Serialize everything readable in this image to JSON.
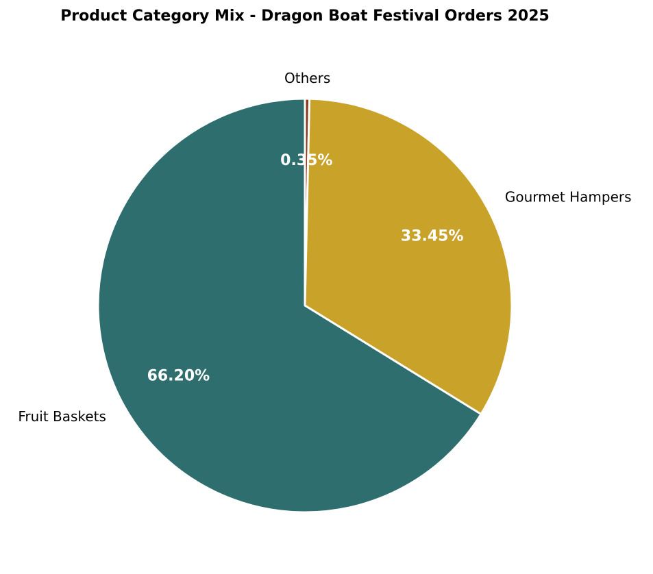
{
  "chart_data": {
    "type": "pie",
    "title": "Product Category Mix - Dragon Boat Festival Orders 2025",
    "categories": [
      "Others",
      "Gourmet Hampers",
      "Fruit Baskets"
    ],
    "values": [
      0.35,
      33.45,
      66.2
    ],
    "percent_labels": [
      "0.35%",
      "33.45%",
      "66.20%"
    ],
    "colors": [
      "#8b3a1e",
      "#c9a22a",
      "#2f6e6e"
    ],
    "start_angle_deg": 90,
    "direction": "clockwise",
    "legend": "none"
  }
}
